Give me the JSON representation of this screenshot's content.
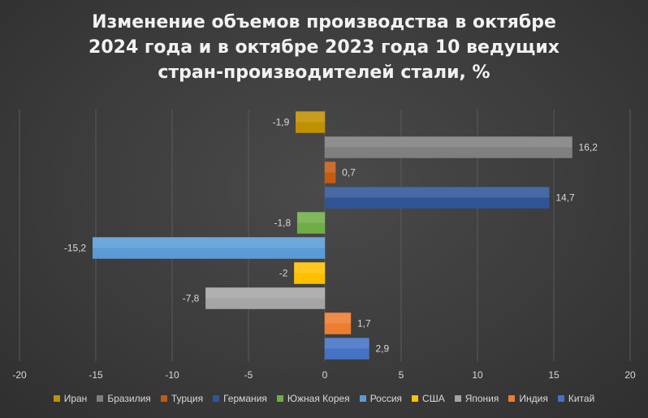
{
  "chart_data": {
    "type": "bar",
    "orientation": "horizontal",
    "title_lines": [
      "Изменение объемов производства в октябре",
      "2024 года и в октябре 2023 года 10 ведущих",
      "стран-производителей стали, %"
    ],
    "categories": [
      "Иран",
      "Бразилия",
      "Турция",
      "Германия",
      "Южная Корея",
      "Россия",
      "США",
      "Япония",
      "Индия",
      "Китай"
    ],
    "values": [
      -1.9,
      16.2,
      0.7,
      14.7,
      -1.8,
      -15.2,
      -2,
      -7.8,
      1.7,
      2.9
    ],
    "value_labels": [
      "-1,9",
      "16,2",
      "0,7",
      "14,7",
      "-1,8",
      "-15,2",
      "-2",
      "-7,8",
      "1,7",
      "2,9"
    ],
    "colors": [
      "#bf9000",
      "#7f7f7f",
      "#c55a11",
      "#2f5597",
      "#70ad47",
      "#5b9bd5",
      "#ffc000",
      "#a5a5a5",
      "#ed7d31",
      "#4472c4"
    ],
    "xlim": [
      -20,
      20
    ],
    "x_ticks": [
      "-20",
      "-15",
      "-10",
      "-5",
      "0",
      "5",
      "10",
      "15",
      "20"
    ],
    "x_tick_values": [
      -20,
      -15,
      -10,
      -5,
      0,
      5,
      10,
      15,
      20
    ],
    "grid": true,
    "legend_position": "bottom"
  }
}
